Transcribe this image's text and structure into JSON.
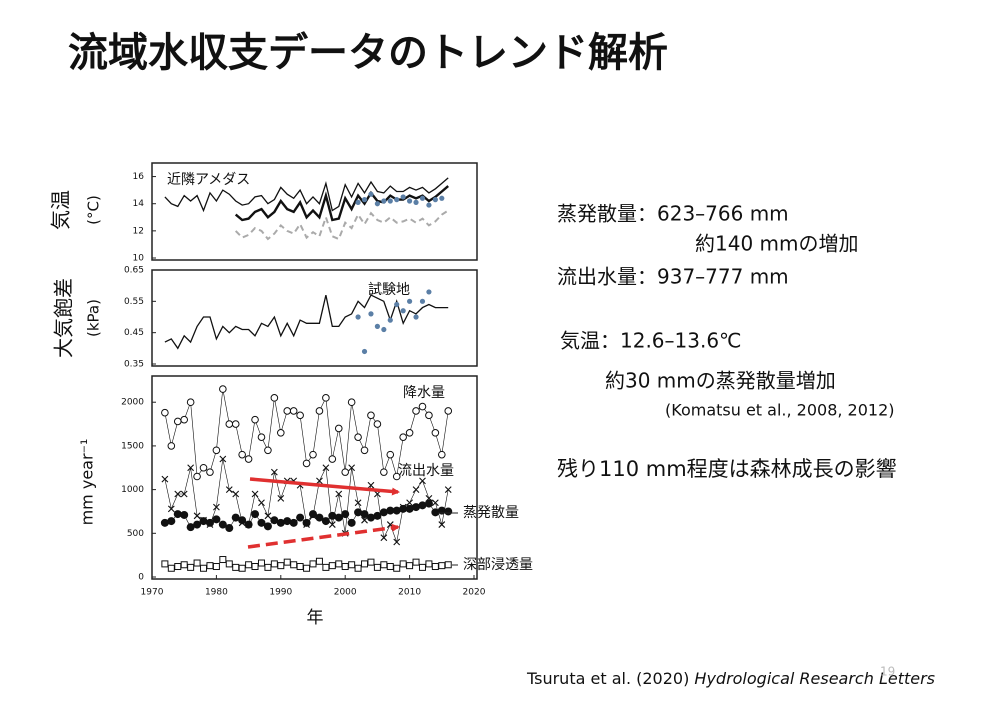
{
  "title": "流域水収支データのトレンド解析",
  "notes": [
    "蒸発散量：623–766 mm",
    "約140 mmの増加",
    "流出水量：937–777 mm",
    "気温：12.6–13.6℃",
    "約30 mmの蒸発散量増加",
    "(Komatsu et al., 2008, 2012)",
    "残り110 mm程度は森林成長の影響"
  ],
  "citation": {
    "authors": "Tsuruta et al. (2020)",
    "journal": "Hydrological Research Letters"
  },
  "page_number": "19",
  "chart_data": [
    {
      "type": "line",
      "ylabel": "気温",
      "yunit": "(°C)",
      "xlim": [
        1970,
        2020
      ],
      "ylim": [
        10,
        17
      ],
      "yticks": [
        10,
        12,
        14,
        16
      ],
      "series": [
        {
          "name": "近隣アメダス",
          "color": "#111111",
          "style": "solid",
          "x": [
            1972,
            1973,
            1974,
            1975,
            1976,
            1977,
            1978,
            1979,
            1980,
            1981,
            1982,
            1983,
            1984,
            1985,
            1986,
            1987,
            1988,
            1989,
            1990,
            1991,
            1992,
            1993,
            1994,
            1995,
            1996,
            1997,
            1998,
            1999,
            2000,
            2001,
            2002,
            2003,
            2004,
            2005,
            2006,
            2007,
            2008,
            2009,
            2010,
            2011,
            2012,
            2013,
            2014,
            2015,
            2016
          ],
          "values": [
            14.5,
            14,
            13.8,
            14.6,
            14.2,
            14.6,
            13.5,
            14.8,
            14.2,
            15,
            14.7,
            14.2,
            13.9,
            14,
            14.5,
            14.6,
            14,
            14.3,
            15.2,
            14.7,
            14.4,
            15,
            14,
            14.5,
            14,
            15.5,
            13.5,
            13.8,
            15.4,
            14.5,
            15.5,
            14.8,
            15.6,
            14.9,
            14.8,
            15.3,
            14.9,
            14.9,
            15.2,
            15,
            15.2,
            14.8,
            15.1,
            15.5,
            15.9
          ]
        },
        {
          "color": "#111111",
          "style": "thick",
          "x": [
            1983,
            1984,
            1985,
            1986,
            1987,
            1988,
            1989,
            1990,
            1991,
            1992,
            1993,
            1994,
            1995,
            1996,
            1997,
            1998,
            1999,
            2000,
            2001,
            2002,
            2003,
            2004,
            2005,
            2006,
            2007,
            2008,
            2009,
            2010,
            2011,
            2012,
            2013,
            2014,
            2015,
            2016
          ],
          "values": [
            13.2,
            12.8,
            12.9,
            13.4,
            13.6,
            13.0,
            13.4,
            14.2,
            13.6,
            13.4,
            14.1,
            13.0,
            13.5,
            13.0,
            14.6,
            12.8,
            12.9,
            14.4,
            13.6,
            14.6,
            14.0,
            14.8,
            14.2,
            14.1,
            14.6,
            14.3,
            14.3,
            14.6,
            14.4,
            14.6,
            14.2,
            14.5,
            14.9,
            15.3
          ]
        },
        {
          "color": "#aaaaaa",
          "style": "dashed",
          "x": [
            1983,
            1984,
            1985,
            1986,
            1987,
            1988,
            1989,
            1990,
            1991,
            1992,
            1993,
            1994,
            1995,
            1996,
            1997,
            1998,
            1999,
            2000,
            2001,
            2002,
            2003,
            2004,
            2005,
            2006,
            2007,
            2008,
            2009,
            2010,
            2011,
            2012,
            2013,
            2014,
            2015,
            2016
          ],
          "values": [
            12.0,
            11.5,
            11.7,
            12.2,
            12.0,
            11.4,
            11.8,
            12.4,
            12.0,
            11.8,
            12.5,
            11.5,
            11.9,
            11.6,
            13.0,
            11.6,
            11.4,
            12.6,
            12.2,
            13.2,
            12.5,
            13.3,
            12.8,
            12.6,
            13.0,
            12.6,
            12.7,
            12.9,
            12.6,
            12.9,
            12.4,
            12.7,
            13.2,
            13.5
          ]
        },
        {
          "color": "#5b7fa6",
          "style": "dots",
          "x": [
            2002,
            2003,
            2004,
            2005,
            2006,
            2007,
            2008,
            2009,
            2010,
            2011,
            2012,
            2013,
            2014,
            2015
          ],
          "values": [
            14.1,
            14.3,
            14.7,
            14.0,
            14.2,
            14.2,
            14.3,
            14.5,
            14.2,
            14.1,
            14.4,
            13.9,
            14.3,
            14.4
          ]
        }
      ]
    },
    {
      "type": "line",
      "ylabel": "大気飽差",
      "yunit": "(kPa)",
      "xlim": [
        1970,
        2020
      ],
      "ylim": [
        0.35,
        0.65
      ],
      "yticks": [
        0.35,
        0.45,
        0.55,
        0.65
      ],
      "series": [
        {
          "color": "#111111",
          "style": "solid",
          "x": [
            1972,
            1973,
            1974,
            1975,
            1976,
            1977,
            1978,
            1979,
            1980,
            1981,
            1982,
            1983,
            1984,
            1985,
            1986,
            1987,
            1988,
            1989,
            1990,
            1991,
            1992,
            1993,
            1994,
            1995,
            1996,
            1997,
            1998,
            1999,
            2000,
            2001,
            2002,
            2003,
            2004,
            2005,
            2006,
            2007,
            2008,
            2009,
            2010,
            2011,
            2012,
            2013,
            2014,
            2015,
            2016
          ],
          "values": [
            0.42,
            0.43,
            0.4,
            0.44,
            0.42,
            0.47,
            0.5,
            0.5,
            0.43,
            0.47,
            0.45,
            0.47,
            0.46,
            0.46,
            0.44,
            0.48,
            0.47,
            0.5,
            0.44,
            0.48,
            0.44,
            0.49,
            0.48,
            0.48,
            0.48,
            0.57,
            0.47,
            0.47,
            0.5,
            0.51,
            0.55,
            0.53,
            0.57,
            0.56,
            0.55,
            0.49,
            0.55,
            0.48,
            0.52,
            0.51,
            0.53,
            0.54,
            0.53,
            0.53,
            0.53
          ]
        },
        {
          "name": "試験地",
          "color": "#5b7fa6",
          "style": "dots",
          "x": [
            2002,
            2003,
            2004,
            2005,
            2006,
            2007,
            2008,
            2009,
            2010,
            2011,
            2012,
            2013
          ],
          "values": [
            0.5,
            0.39,
            0.51,
            0.47,
            0.46,
            0.49,
            0.54,
            0.52,
            0.55,
            0.5,
            0.55,
            0.58
          ]
        }
      ]
    },
    {
      "type": "line",
      "ylabel": "mm year⁻¹",
      "xlabel": "年",
      "xlim": [
        1970,
        2020
      ],
      "ylim": [
        0,
        2300
      ],
      "yticks": [
        0,
        500,
        1000,
        1500,
        2000
      ],
      "xticks": [
        1970,
        1980,
        1990,
        2000,
        2010,
        2020
      ],
      "series": [
        {
          "name": "降水量",
          "color": "#111111",
          "style": "open-circle",
          "x": [
            1972,
            1973,
            1974,
            1975,
            1976,
            1977,
            1978,
            1979,
            1980,
            1981,
            1982,
            1983,
            1984,
            1985,
            1986,
            1987,
            1988,
            1989,
            1990,
            1991,
            1992,
            1993,
            1994,
            1995,
            1996,
            1997,
            1998,
            1999,
            2000,
            2001,
            2002,
            2003,
            2004,
            2005,
            2006,
            2007,
            2008,
            2009,
            2010,
            2011,
            2012,
            2013,
            2014,
            2015,
            2016
          ],
          "values": [
            1880,
            1500,
            1780,
            1800,
            2000,
            1150,
            1250,
            1200,
            1450,
            2150,
            1750,
            1750,
            1400,
            1350,
            1800,
            1600,
            1450,
            2050,
            1650,
            1900,
            1900,
            1850,
            1300,
            1400,
            1900,
            2050,
            1350,
            1700,
            1200,
            2000,
            1600,
            1450,
            1850,
            1750,
            1200,
            1400,
            1150,
            1600,
            1650,
            1900,
            1950,
            1850,
            1650,
            1400,
            1900
          ]
        },
        {
          "name": "流出水量",
          "color": "#111111",
          "style": "cross",
          "x": [
            1972,
            1973,
            1974,
            1975,
            1976,
            1977,
            1978,
            1979,
            1980,
            1981,
            1982,
            1983,
            1984,
            1985,
            1986,
            1987,
            1988,
            1989,
            1990,
            1991,
            1992,
            1993,
            1994,
            1995,
            1996,
            1997,
            1998,
            1999,
            2000,
            2001,
            2002,
            2003,
            2004,
            2005,
            2006,
            2007,
            2008,
            2009,
            2010,
            2011,
            2012,
            2013,
            2014,
            2015,
            2016
          ],
          "values": [
            1120,
            780,
            950,
            950,
            1250,
            700,
            650,
            600,
            800,
            1350,
            1000,
            950,
            620,
            600,
            950,
            850,
            700,
            1200,
            900,
            1100,
            1100,
            1050,
            600,
            700,
            1100,
            1250,
            600,
            950,
            500,
            1250,
            850,
            650,
            1050,
            950,
            450,
            600,
            400,
            800,
            850,
            1000,
            1100,
            900,
            850,
            600,
            1000
          ]
        },
        {
          "name": "蒸発散量",
          "color": "#111111",
          "style": "filled-circle",
          "x": [
            1972,
            1973,
            1974,
            1975,
            1976,
            1977,
            1978,
            1979,
            1980,
            1981,
            1982,
            1983,
            1984,
            1985,
            1986,
            1987,
            1988,
            1989,
            1990,
            1991,
            1992,
            1993,
            1994,
            1995,
            1996,
            1997,
            1998,
            1999,
            2000,
            2001,
            2002,
            2003,
            2004,
            2005,
            2006,
            2007,
            2008,
            2009,
            2010,
            2011,
            2012,
            2013,
            2014,
            2015,
            2016
          ],
          "values": [
            620,
            640,
            720,
            710,
            570,
            600,
            640,
            620,
            660,
            600,
            560,
            680,
            650,
            600,
            720,
            620,
            580,
            650,
            620,
            640,
            620,
            680,
            620,
            720,
            680,
            640,
            700,
            680,
            720,
            620,
            740,
            720,
            680,
            700,
            740,
            760,
            760,
            780,
            780,
            800,
            820,
            840,
            740,
            760,
            750
          ]
        },
        {
          "name": "深部浸透量",
          "color": "#111111",
          "style": "open-square",
          "x": [
            1972,
            1973,
            1974,
            1975,
            1976,
            1977,
            1978,
            1979,
            1980,
            1981,
            1982,
            1983,
            1984,
            1985,
            1986,
            1987,
            1988,
            1989,
            1990,
            1991,
            1992,
            1993,
            1994,
            1995,
            1996,
            1997,
            1998,
            1999,
            2000,
            2001,
            2002,
            2003,
            2004,
            2005,
            2006,
            2007,
            2008,
            2009,
            2010,
            2011,
            2012,
            2013,
            2014,
            2015,
            2016
          ],
          "values": [
            150,
            100,
            120,
            140,
            110,
            160,
            100,
            130,
            120,
            200,
            150,
            110,
            100,
            140,
            120,
            160,
            110,
            150,
            130,
            170,
            140,
            120,
            100,
            150,
            180,
            110,
            130,
            150,
            120,
            140,
            100,
            150,
            170,
            110,
            140,
            120,
            100,
            150,
            130,
            170,
            110,
            150,
            120,
            130,
            140
          ]
        }
      ]
    }
  ]
}
